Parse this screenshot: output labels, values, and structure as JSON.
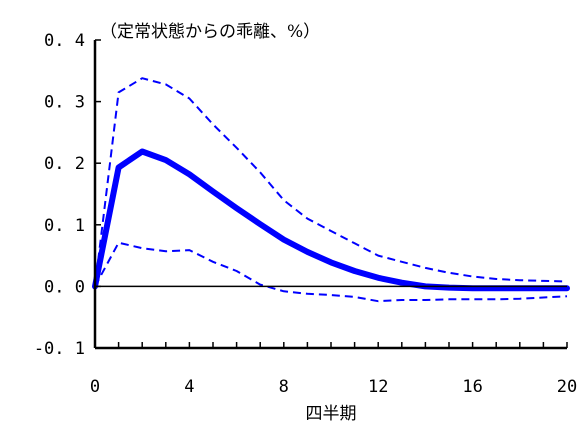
{
  "chart_data": {
    "type": "line",
    "title": "（定常状態からの乖離、%）",
    "xlabel": "四半期",
    "ylabel": "",
    "xlim": [
      0,
      20
    ],
    "ylim": [
      -0.1,
      0.4
    ],
    "x_ticks": [
      0,
      4,
      8,
      12,
      16,
      20
    ],
    "x_tick_labels": [
      "0",
      "4",
      "8",
      "12",
      "16",
      "20"
    ],
    "y_ticks": [
      0.4,
      0.3,
      0.2,
      0.1,
      0.0,
      -0.1
    ],
    "y_tick_labels": [
      "0. 4",
      "0. 3",
      "0. 2",
      "0. 1",
      "0. 0",
      "-0. 1"
    ],
    "legend": "none",
    "grid": false,
    "series": [
      {
        "role": "median",
        "style": "solid-thick",
        "color": "#0000ff",
        "x": [
          0,
          1,
          2,
          3,
          4,
          5,
          6,
          7,
          8,
          9,
          10,
          11,
          12,
          13,
          14,
          15,
          16,
          17,
          18,
          19,
          20
        ],
        "values": [
          0.0,
          0.193,
          0.219,
          0.205,
          0.182,
          0.154,
          0.127,
          0.101,
          0.076,
          0.056,
          0.039,
          0.025,
          0.014,
          0.006,
          0.0,
          -0.002,
          -0.003,
          -0.003,
          -0.003,
          -0.003,
          -0.003
        ]
      },
      {
        "role": "upper-band",
        "style": "dashed",
        "color": "#0000ff",
        "x": [
          0,
          1,
          2,
          3,
          4,
          5,
          6,
          7,
          8,
          9,
          10,
          11,
          12,
          13,
          14,
          15,
          16,
          17,
          18,
          19,
          20
        ],
        "values": [
          0.0,
          0.315,
          0.338,
          0.328,
          0.305,
          0.263,
          0.225,
          0.185,
          0.14,
          0.11,
          0.09,
          0.07,
          0.05,
          0.04,
          0.03,
          0.022,
          0.016,
          0.012,
          0.01,
          0.009,
          0.008
        ]
      },
      {
        "role": "lower-band",
        "style": "dashed",
        "color": "#0000ff",
        "x": [
          0,
          1,
          2,
          3,
          4,
          5,
          6,
          7,
          8,
          9,
          10,
          11,
          12,
          13,
          14,
          15,
          16,
          17,
          18,
          19,
          20
        ],
        "values": [
          0.0,
          0.071,
          0.062,
          0.057,
          0.059,
          0.04,
          0.025,
          0.003,
          -0.008,
          -0.012,
          -0.014,
          -0.017,
          -0.024,
          -0.022,
          -0.022,
          -0.021,
          -0.021,
          -0.021,
          -0.02,
          -0.018,
          -0.016
        ]
      }
    ]
  }
}
